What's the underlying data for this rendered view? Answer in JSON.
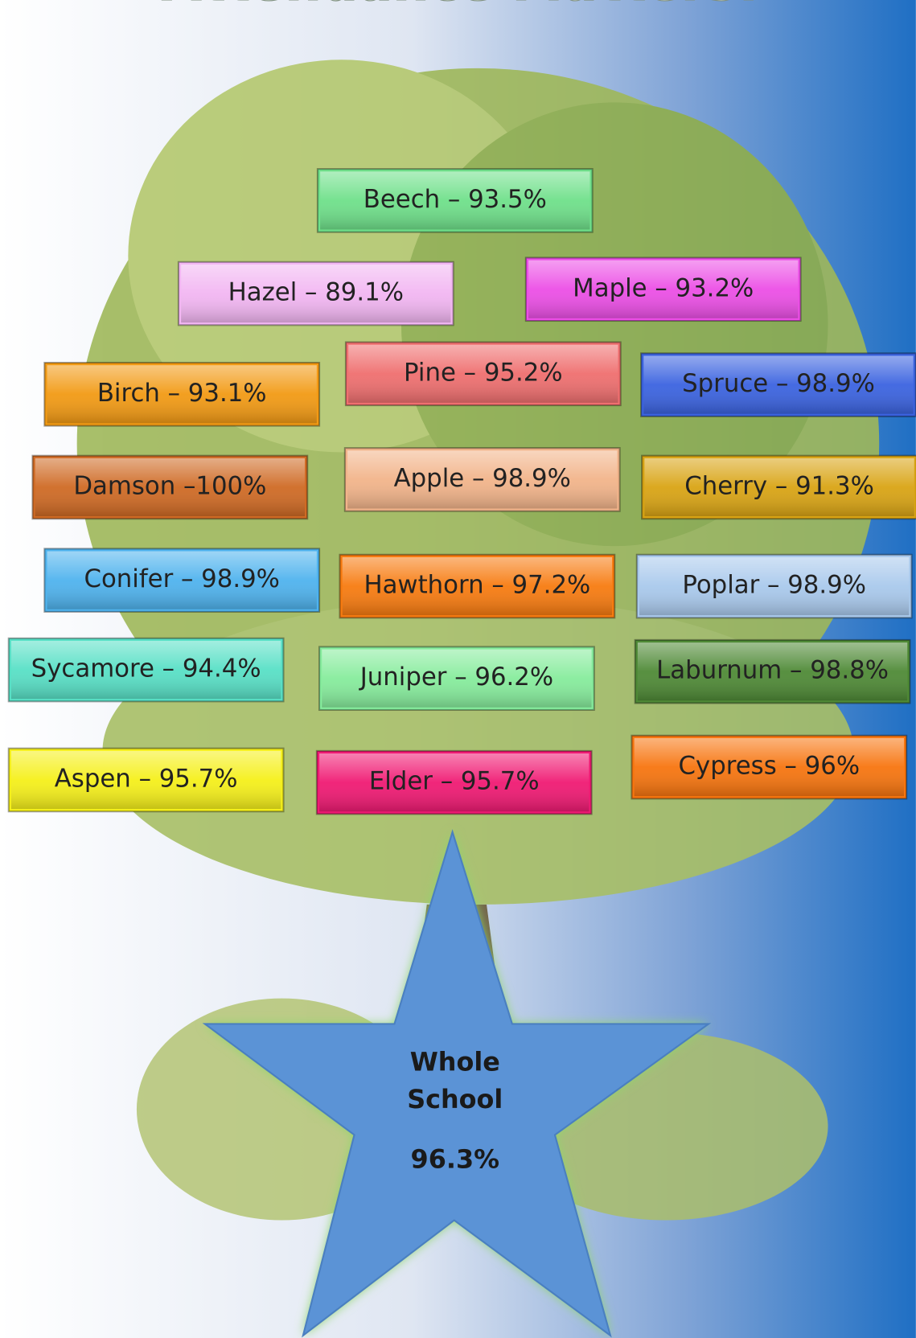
{
  "title": "Attendance Matters!",
  "classes": [
    {
      "label": "Beech – 93.5%",
      "color": "#6fe08a"
    },
    {
      "label": "Hazel – 89.1%",
      "color": "#f2b6f2"
    },
    {
      "label": "Maple – 93.2%",
      "color": "#ec4fe6"
    },
    {
      "label": "Birch – 93.1%",
      "color": "#f29a14"
    },
    {
      "label": "Pine – 95.2%",
      "color": "#ef6f6f"
    },
    {
      "label": "Spruce – 98.9%",
      "color": "#3b63e0"
    },
    {
      "label": "Damson –100%",
      "color": "#cf6a24"
    },
    {
      "label": "Apple – 98.9%",
      "color": "#f2b48a"
    },
    {
      "label": "Cherry – 91.3%",
      "color": "#d9a414"
    },
    {
      "label": "Conifer – 98.9%",
      "color": "#4fb3ee"
    },
    {
      "label": "Hawthorn – 97.2%",
      "color": "#f77b10"
    },
    {
      "label": "Poplar – 98.9%",
      "color": "#a9c9ec"
    },
    {
      "label": "Sycamore – 94.4%",
      "color": "#58e0c6"
    },
    {
      "label": "Juniper – 96.2%",
      "color": "#86ec9c"
    },
    {
      "label": "Laburnum – 98.8%",
      "color": "#4f8a36"
    },
    {
      "label": "Aspen – 95.7%",
      "color": "#f5f01a"
    },
    {
      "label": "Elder – 95.7%",
      "color": "#f01a73"
    },
    {
      "label": "Cypress – 96%",
      "color": "#f7750f"
    }
  ],
  "star": {
    "lines": [
      "Whole",
      "School"
    ],
    "value": "96.3%",
    "color": "#5b93d6"
  }
}
